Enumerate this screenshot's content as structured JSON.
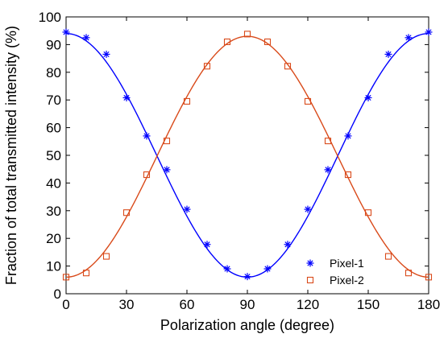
{
  "chart_data": {
    "type": "line",
    "xlabel": "Polarization angle (degree)",
    "ylabel": "Fraction of total transmitted intensity (%)",
    "xlim": [
      0,
      180
    ],
    "ylim": [
      0,
      100
    ],
    "xticks": [
      0,
      30,
      60,
      90,
      120,
      150,
      180
    ],
    "yticks": [
      0,
      10,
      20,
      30,
      40,
      50,
      60,
      70,
      80,
      90,
      100
    ],
    "grid": false,
    "legend_position": "bottom-right",
    "series": [
      {
        "name": "Pixel-1",
        "marker": "asterisk",
        "color": "#0000FF",
        "x": [
          0,
          10,
          20,
          30,
          40,
          50,
          60,
          70,
          80,
          90,
          100,
          110,
          120,
          130,
          140,
          150,
          160,
          170,
          180
        ],
        "y": [
          94.5,
          92.5,
          86.5,
          70.8,
          57,
          44.8,
          30.5,
          17.8,
          9,
          6.2,
          9,
          17.8,
          30.5,
          44.8,
          57,
          70.8,
          86.5,
          92.5,
          94.5
        ],
        "fit": {
          "form": "cos2",
          "min": 6.0,
          "max": 94.0,
          "phase_deg": 0
        }
      },
      {
        "name": "Pixel-2",
        "marker": "square-open",
        "color": "#D94A1A",
        "x": [
          0,
          10,
          20,
          30,
          40,
          50,
          60,
          70,
          80,
          90,
          100,
          110,
          120,
          130,
          140,
          150,
          160,
          170,
          180
        ],
        "y": [
          6,
          7.5,
          13.5,
          29.3,
          43,
          55.2,
          69.5,
          82.2,
          91,
          93.8,
          91,
          82.2,
          69.5,
          55.2,
          43,
          29.3,
          13.5,
          7.5,
          6
        ],
        "fit": {
          "form": "sin2",
          "min": 6.0,
          "max": 93.0,
          "phase_deg": 0
        }
      }
    ]
  }
}
